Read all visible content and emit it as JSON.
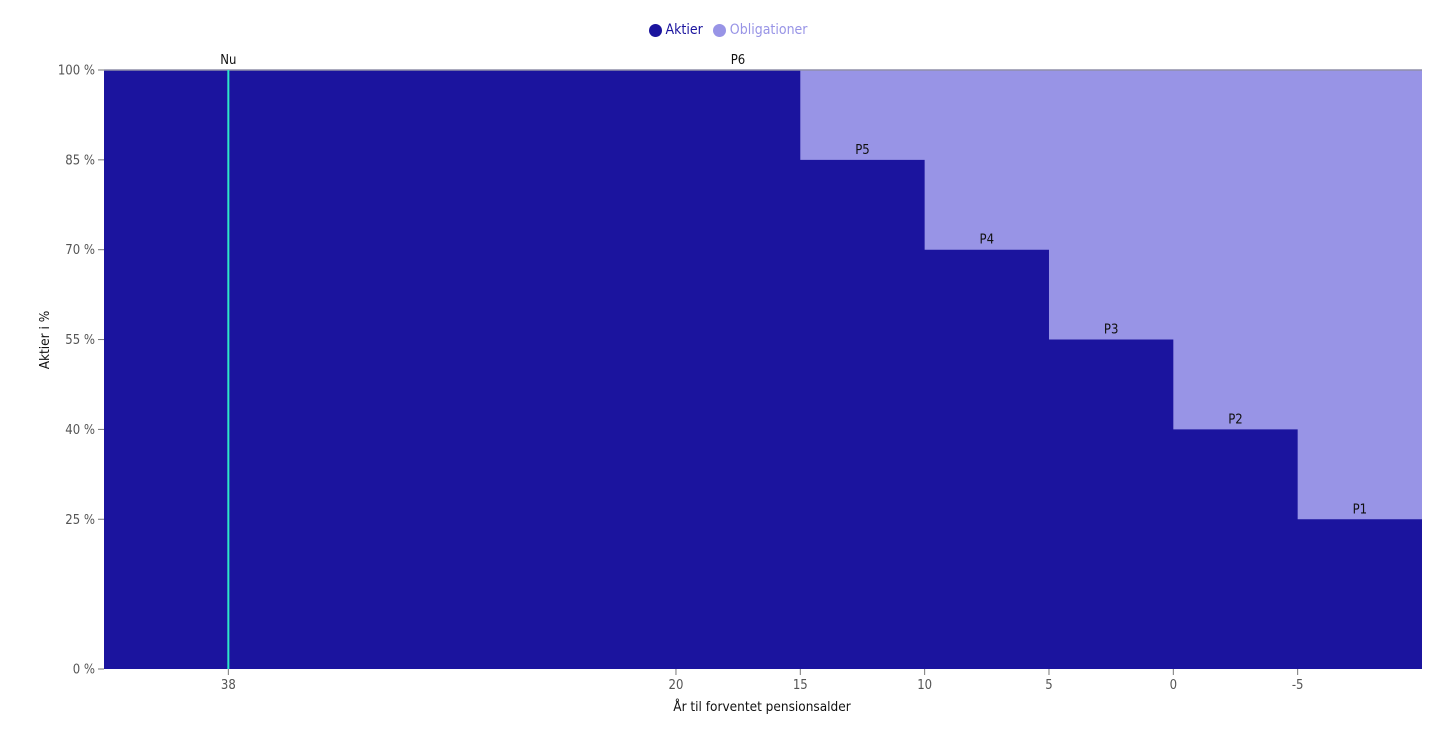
{
  "chart_data": {
    "type": "area",
    "legend": [
      {
        "name": "Aktier",
        "color": "#1b149e"
      },
      {
        "name": "Obligationer",
        "color": "#9894e6"
      }
    ],
    "xlabel": "År til forventet pensionsalder",
    "ylabel": "Aktier i %",
    "x_reversed": true,
    "xlim": [
      43,
      -10
    ],
    "ylim": [
      0,
      100
    ],
    "x_ticks": [
      {
        "value": 38,
        "label": "38"
      },
      {
        "value": 20,
        "label": "20"
      },
      {
        "value": 15,
        "label": "15"
      },
      {
        "value": 10,
        "label": "10"
      },
      {
        "value": 5,
        "label": "5"
      },
      {
        "value": 0,
        "label": "0"
      },
      {
        "value": -5,
        "label": "-5"
      }
    ],
    "y_ticks": [
      {
        "value": 0,
        "label": "0 %"
      },
      {
        "value": 25,
        "label": "25 %"
      },
      {
        "value": 40,
        "label": "40 %"
      },
      {
        "value": 55,
        "label": "55 %"
      },
      {
        "value": 70,
        "label": "70 %"
      },
      {
        "value": 85,
        "label": "85 %"
      },
      {
        "value": 100,
        "label": "100 %"
      }
    ],
    "phases": [
      {
        "label": "P6",
        "from": 43,
        "to": 15,
        "aktier": 100,
        "highlight": true
      },
      {
        "label": "P5",
        "from": 15,
        "to": 10,
        "aktier": 85
      },
      {
        "label": "P4",
        "from": 10,
        "to": 5,
        "aktier": 70
      },
      {
        "label": "P3",
        "from": 5,
        "to": 0,
        "aktier": 55
      },
      {
        "label": "P2",
        "from": 0,
        "to": -5,
        "aktier": 40
      },
      {
        "label": "P1",
        "from": -5,
        "to": -10,
        "aktier": 25
      }
    ],
    "marker": {
      "label": "Nu",
      "x": 38,
      "color": "#2ee6c8"
    },
    "highlight_color": "#22d39a"
  }
}
